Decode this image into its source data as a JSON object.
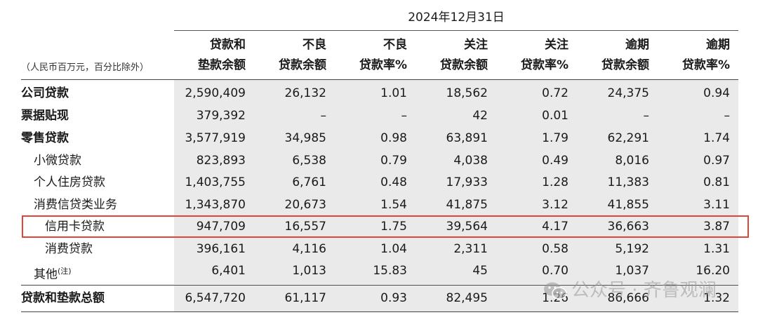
{
  "table": {
    "date_header": "2024年12月31日",
    "unit_note": "（人民币百万元，百分比除外）",
    "columns": [
      {
        "line1": "贷款和",
        "line2": "垫款余额"
      },
      {
        "line1": "不良",
        "line2": "贷款余额"
      },
      {
        "line1": "不良",
        "line2": "贷款率%"
      },
      {
        "line1": "关注",
        "line2": "贷款余额"
      },
      {
        "line1": "关注",
        "line2": "贷款率%"
      },
      {
        "line1": "逾期",
        "line2": "贷款余额"
      },
      {
        "line1": "逾期",
        "line2": "贷款率%"
      }
    ],
    "rows": [
      {
        "label": "公司贷款",
        "values": [
          "2,590,409",
          "26,132",
          "1.01",
          "18,562",
          "0.72",
          "24,375",
          "0.94"
        ]
      },
      {
        "label": "票据贴现",
        "values": [
          "379,392",
          "–",
          "–",
          "42",
          "0.01",
          "–",
          "–"
        ]
      },
      {
        "label": "零售贷款",
        "values": [
          "3,577,919",
          "34,985",
          "0.98",
          "63,891",
          "1.79",
          "62,291",
          "1.74"
        ]
      },
      {
        "label": "小微贷款",
        "values": [
          "823,893",
          "6,538",
          "0.79",
          "4,038",
          "0.49",
          "8,016",
          "0.97"
        ]
      },
      {
        "label": "个人住房贷款",
        "values": [
          "1,403,755",
          "6,761",
          "0.48",
          "17,933",
          "1.28",
          "11,383",
          "0.81"
        ]
      },
      {
        "label": "消费信贷类业务",
        "values": [
          "1,343,870",
          "20,673",
          "1.54",
          "41,875",
          "3.12",
          "41,855",
          "3.11"
        ]
      },
      {
        "label": "信用卡贷款",
        "values": [
          "947,709",
          "16,557",
          "1.75",
          "39,564",
          "4.17",
          "36,663",
          "3.87"
        ]
      },
      {
        "label": "消费贷款",
        "values": [
          "396,161",
          "4,116",
          "1.04",
          "2,311",
          "0.58",
          "5,192",
          "1.31"
        ]
      },
      {
        "label": "其他",
        "note": "(注)",
        "values": [
          "6,401",
          "1,013",
          "15.83",
          "45",
          "0.70",
          "1,037",
          "16.20"
        ]
      },
      {
        "label": "贷款和垫款总额",
        "values": [
          "6,547,720",
          "61,117",
          "0.93",
          "82,495",
          "1.26",
          "86,666",
          "1.32"
        ]
      }
    ]
  },
  "watermark": {
    "text": "公众号 · 齐鲁观澜",
    "icon": "wechat-icon"
  },
  "colors": {
    "highlight_border": "#e0453a",
    "row_band": "#eaeaea"
  }
}
